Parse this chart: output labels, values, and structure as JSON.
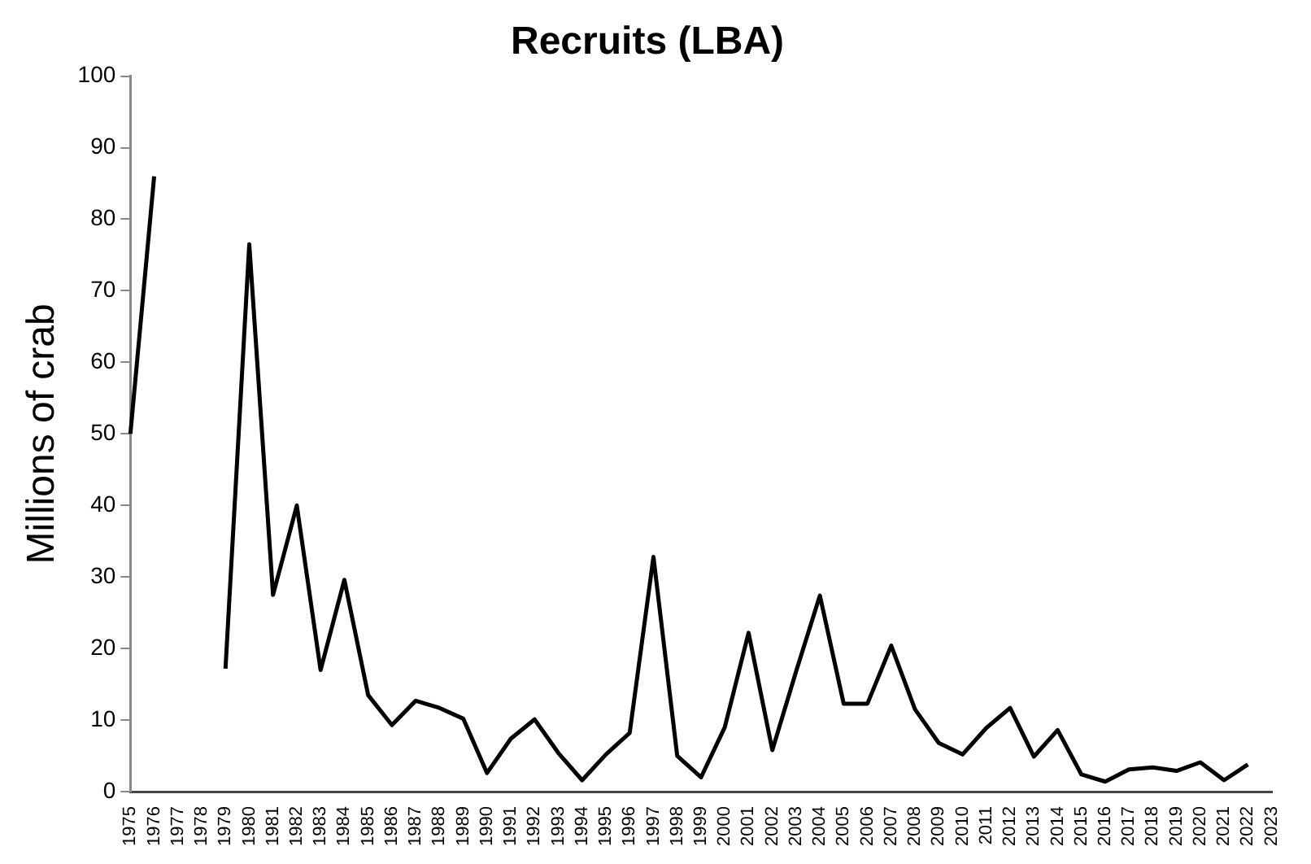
{
  "chart_data": {
    "type": "line",
    "title": "Recruits (LBA)",
    "ylabel": "Millions of crab",
    "categories": [
      "1975",
      "1976",
      "1977",
      "1978",
      "1979",
      "1980",
      "1981",
      "1982",
      "1983",
      "1984",
      "1985",
      "1986",
      "1987",
      "1988",
      "1989",
      "1990",
      "1991",
      "1992",
      "1993",
      "1994",
      "1995",
      "1996",
      "1997",
      "1998",
      "1999",
      "2000",
      "2001",
      "2002",
      "2003",
      "2004",
      "2005",
      "2006",
      "2007",
      "2008",
      "2009",
      "2010",
      "2011",
      "2012",
      "2013",
      "2014",
      "2015",
      "2016",
      "2017",
      "2018",
      "2019",
      "2020",
      "2021",
      "2022",
      "2023"
    ],
    "series": [
      {
        "color": "#000000",
        "values": [
          50,
          86,
          null,
          null,
          17.2,
          76.5,
          27.5,
          40,
          17,
          29.6,
          13.5,
          9.3,
          12.7,
          11.7,
          10.2,
          2.6,
          7.4,
          10.1,
          5.4,
          1.6,
          5.2,
          8.2,
          32.8,
          5,
          2,
          9,
          22.2,
          5.8,
          16.8,
          27.4,
          12.3,
          12.3,
          20.4,
          11.5,
          6.8,
          5.2,
          8.9,
          11.7,
          4.9,
          8.6,
          2.4,
          1.4,
          3.1,
          3.4,
          2.9,
          4.1,
          1.6,
          3.8,
          null
        ]
      }
    ],
    "ylim": [
      0,
      100
    ],
    "yticks": [
      0,
      10,
      20,
      30,
      40,
      50,
      60,
      70,
      80,
      90,
      100
    ],
    "grid": false,
    "legend": false,
    "marker": "none",
    "line_style": "solid"
  }
}
